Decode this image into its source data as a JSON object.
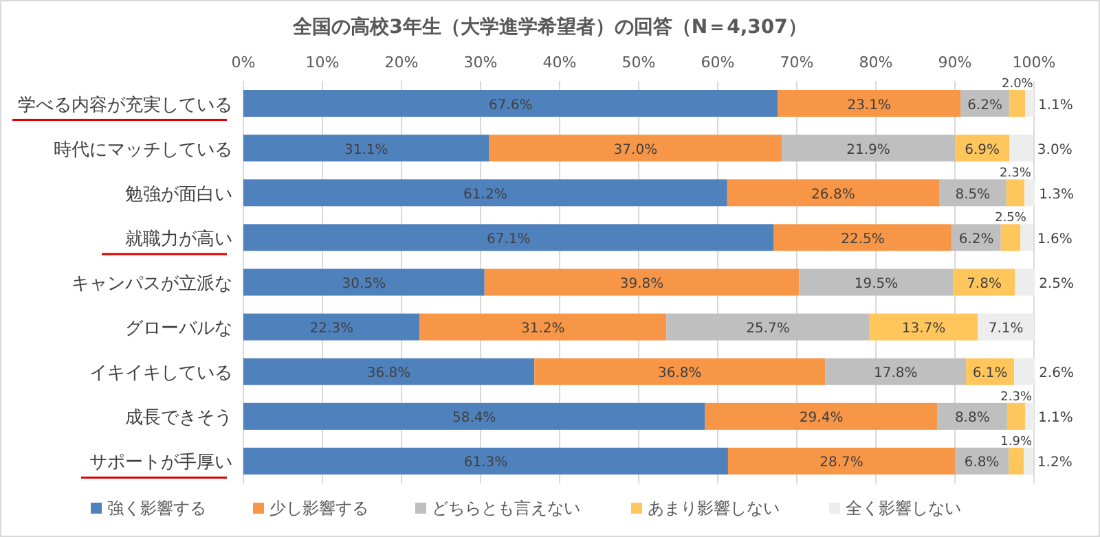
{
  "chart_data": {
    "type": "bar",
    "orientation": "horizontal",
    "stacked": true,
    "title": "全国の高校3年生（大学進学希望者）の回答（N＝4,307）",
    "categories": [
      "学べる内容が充実している",
      "時代にマッチしている",
      "勉強が面白い",
      "就職力が高い",
      "キャンパスが立派な",
      "グローバルな",
      "イキイキしている",
      "成長できそう",
      "サポートが手厚い"
    ],
    "series": [
      {
        "name": "強く影響する",
        "color": "#4f81bd",
        "values": [
          67.6,
          31.1,
          61.2,
          67.1,
          30.5,
          22.3,
          36.8,
          58.4,
          61.3
        ],
        "value_labels": [
          "67.6%",
          "31.1%",
          "61.2%",
          "67.1%",
          "30.5%",
          "22.3%",
          "36.8%",
          "58.4%",
          "61.3%"
        ]
      },
      {
        "name": "少し影響する",
        "color": "#f79646",
        "values": [
          23.1,
          37.0,
          26.8,
          22.5,
          39.8,
          31.2,
          36.8,
          29.4,
          28.7
        ],
        "value_labels": [
          "23.1%",
          "37.0%",
          "26.8%",
          "22.5%",
          "39.8%",
          "31.2%",
          "36.8%",
          "29.4%",
          "28.7%"
        ]
      },
      {
        "name": "どちらとも言えない",
        "color": "#bfbfbf",
        "values": [
          6.2,
          21.9,
          8.5,
          6.2,
          19.5,
          25.7,
          17.8,
          8.8,
          6.8
        ],
        "value_labels": [
          "6.2%",
          "21.9%",
          "8.5%",
          "6.2%",
          "19.5%",
          "25.7%",
          "17.8%",
          "8.8%",
          "6.8%"
        ]
      },
      {
        "name": "あまり影響しない",
        "color": "#ffc65c",
        "values": [
          2.0,
          6.9,
          2.3,
          2.5,
          7.8,
          13.7,
          6.1,
          2.3,
          1.9
        ],
        "value_labels": [
          "2.0%",
          "6.9%",
          "2.3%",
          "2.5%",
          "7.8%",
          "13.7%",
          "6.1%",
          "2.3%",
          "1.9%"
        ]
      },
      {
        "name": "全く影響しない",
        "color": "#ededed",
        "values": [
          1.1,
          3.0,
          1.3,
          1.6,
          2.5,
          7.1,
          2.6,
          1.1,
          1.2
        ],
        "value_labels": [
          "1.1%",
          "3.0%",
          "1.3%",
          "1.6%",
          "2.5%",
          "7.1%",
          "2.6%",
          "1.1%",
          "1.2%"
        ]
      }
    ],
    "xlim": [
      0,
      100
    ],
    "xticks": [
      {
        "value": 0,
        "label": "0%"
      },
      {
        "value": 10,
        "label": "10%"
      },
      {
        "value": 20,
        "label": "20%"
      },
      {
        "value": 30,
        "label": "30%"
      },
      {
        "value": 40,
        "label": "40%"
      },
      {
        "value": 50,
        "label": "50%"
      },
      {
        "value": 60,
        "label": "60%"
      },
      {
        "value": 70,
        "label": "70%"
      },
      {
        "value": 80,
        "label": "80%"
      },
      {
        "value": 90,
        "label": "90%"
      },
      {
        "value": 100,
        "label": "100%"
      }
    ],
    "grid": "x",
    "legend": "bottom"
  }
}
